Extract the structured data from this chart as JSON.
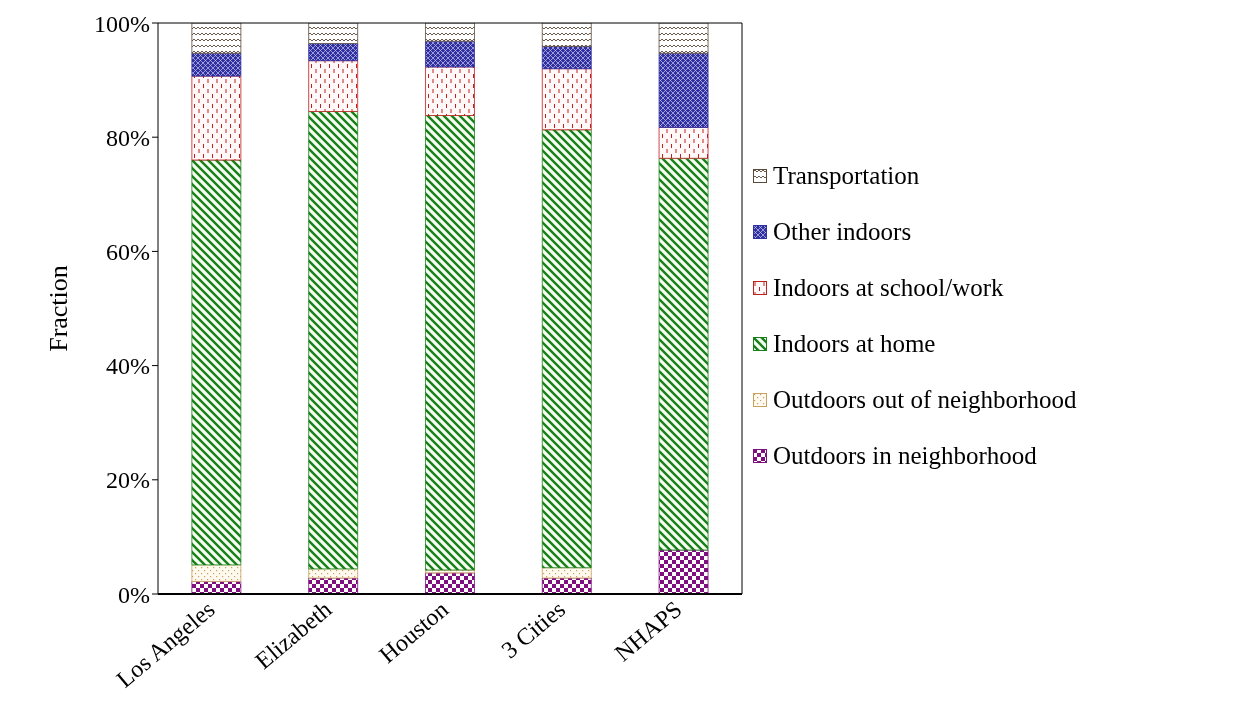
{
  "chart_data": {
    "type": "bar",
    "stacked": true,
    "ylabel": "Fraction",
    "categories": [
      "Los Angeles",
      "Elizabeth",
      "Houston",
      "3 Cities",
      "NHAPS"
    ],
    "series": [
      {
        "name": "Outdoors in neighborhood",
        "color": "#7f0f7f",
        "values": [
          2.2,
          2.8,
          3.7,
          2.8,
          7.7
        ]
      },
      {
        "name": "Outdoors out of neighborhood",
        "color": "#c8a060",
        "values": [
          2.9,
          1.6,
          0.5,
          1.8,
          0
        ]
      },
      {
        "name": "Indoors at home",
        "color": "#1a7f1a",
        "values": [
          70.9,
          80.1,
          79.6,
          76.7,
          68.6
        ]
      },
      {
        "name": "Indoors at school/work",
        "color": "#c02020",
        "values": [
          14.7,
          8.9,
          8.5,
          10.7,
          5.4
        ]
      },
      {
        "name": "Other indoors",
        "color": "#3030a0",
        "values": [
          4.0,
          3.0,
          4.5,
          3.9,
          13.0
        ]
      },
      {
        "name": "Transportation",
        "color": "#5a4a3a",
        "values": [
          5.3,
          3.6,
          3.2,
          4.1,
          5.3
        ]
      }
    ],
    "ylim": [
      0,
      100
    ],
    "yticks": [
      {
        "value": 0,
        "label": "0%"
      },
      {
        "value": 20,
        "label": "20%"
      },
      {
        "value": 40,
        "label": "40%"
      },
      {
        "value": 60,
        "label": "60%"
      },
      {
        "value": 80,
        "label": "80%"
      },
      {
        "value": 100,
        "label": "100%"
      }
    ],
    "legend": "right"
  }
}
